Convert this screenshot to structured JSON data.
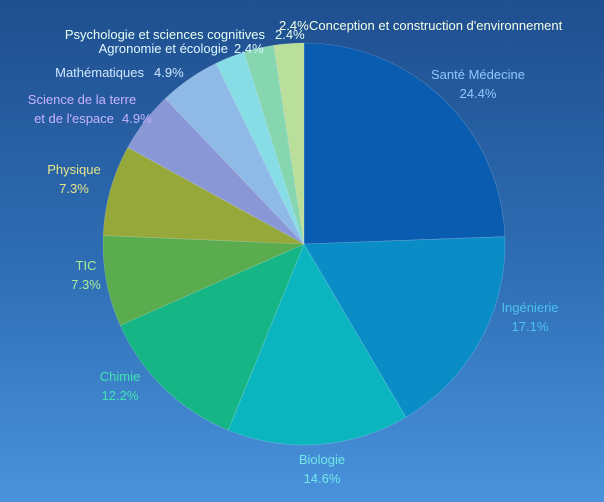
{
  "chart_data": {
    "type": "pie",
    "title": "",
    "start_angle_deg": 0,
    "direction": "clockwise",
    "slices": [
      {
        "name": "Santé Médecine",
        "value": 24.4,
        "value_label": "24.4%",
        "color": "#0a5cb0",
        "label_color": "#8ec8ff"
      },
      {
        "name": "Ingénierie",
        "value": 17.1,
        "value_label": "17.1%",
        "color": "#0a8dc7",
        "label_color": "#4dc2ec"
      },
      {
        "name": "Biologie",
        "value": 14.6,
        "value_label": "14.6%",
        "color": "#0bb5c0",
        "label_color": "#6fe8e8"
      },
      {
        "name": "Chimie",
        "value": 12.2,
        "value_label": "12.2%",
        "color": "#16b585",
        "label_color": "#40e4b0"
      },
      {
        "name": "TIC",
        "value": 7.3,
        "value_label": "7.3%",
        "color": "#5aac4e",
        "label_color": "#a8ec98"
      },
      {
        "name": "Physique",
        "value": 7.3,
        "value_label": "7.3%",
        "color": "#97a83a",
        "label_color": "#e6e58a"
      },
      {
        "name": "Science de la terre et de l'espace",
        "value": 4.9,
        "value_label": "4.9%",
        "color": "#8a97d6",
        "label_color": "#c8b3ff"
      },
      {
        "name": "Mathématiques",
        "value": 4.9,
        "value_label": "4.9%",
        "color": "#8fb9e6",
        "label_color": "#cfe7ff"
      },
      {
        "name": "Agronomie et écologie",
        "value": 2.4,
        "value_label": "2.4%",
        "color": "#86dde6",
        "label_color": "#dff8ff"
      },
      {
        "name": "Psychologie et sciences cognitives",
        "value": 2.4,
        "value_label": "2.4%",
        "color": "#86d6b0",
        "label_color": "#e9fff2"
      },
      {
        "name": "Conception et construction d'environnement",
        "value": 2.4,
        "value_label": "2.4%",
        "color": "#b9df9b",
        "label_color": "#f4ffe6"
      }
    ]
  }
}
